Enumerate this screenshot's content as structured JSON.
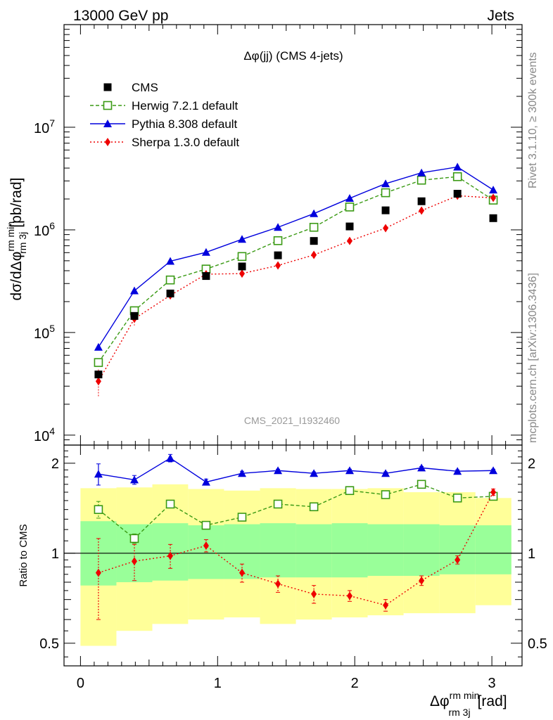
{
  "header": {
    "left": "13000 GeV pp",
    "right": "Jets"
  },
  "side_labels": {
    "rivet": "Rivet 3.1.10, ≥ 300k events",
    "mcplots": "mcplots.cern.ch [arXiv:1306.3436]"
  },
  "chart_data": {
    "type": "scatter",
    "title": "Δφ(jj) (CMS 4-jets)",
    "watermark": "CMS_2021_I1932460",
    "xlabel": {
      "main": "Δφ",
      "sup": "rm min",
      "sub": "rm 3j",
      "unit": "[rad]"
    },
    "ylabel": {
      "pre": "dσ/dΔφ",
      "sup": "rm min",
      "sub": "rm 3j",
      "unit": "[pb/rad]"
    },
    "ratio_ylabel": "Ratio to CMS",
    "xlim": [
      -0.12,
      3.22
    ],
    "ylim": [
      8000,
      100000000
    ],
    "yscale": "log",
    "ratio_ylim": [
      0.42,
      2.3
    ],
    "xticks": [
      "0",
      "1",
      "2",
      "3"
    ],
    "yticks": [
      "10^4",
      "10^5",
      "10^6",
      "10^7"
    ],
    "ratio_yticks": [
      "0.5",
      "1",
      "2"
    ],
    "x": [
      0.131,
      0.393,
      0.655,
      0.916,
      1.178,
      1.44,
      1.702,
      1.963,
      2.225,
      2.487,
      2.749,
      3.01
    ],
    "bin_edges": [
      0,
      0.262,
      0.524,
      0.785,
      1.047,
      1.309,
      1.571,
      1.833,
      2.094,
      2.356,
      2.618,
      2.88,
      3.142
    ],
    "data": {
      "name": "CMS",
      "values": [
        39000,
        145000,
        240000,
        355000,
        440000,
        565000,
        780000,
        1080000,
        1550000,
        1900000,
        2250000,
        1300000
      ],
      "stat_band": [
        0.78,
        0.8,
        0.81,
        0.82,
        0.82,
        0.83,
        0.83,
        0.83,
        0.84,
        0.84,
        0.85,
        0.85
      ],
      "stat_band_hi": [
        1.28,
        1.25,
        1.26,
        1.24,
        1.25,
        1.26,
        1.25,
        1.26,
        1.25,
        1.25,
        1.24,
        1.24
      ],
      "total_band_lo": [
        0.49,
        0.55,
        0.58,
        0.6,
        0.61,
        0.58,
        0.6,
        0.61,
        0.62,
        0.63,
        0.63,
        0.67
      ],
      "total_band_hi": [
        1.65,
        1.66,
        1.7,
        1.64,
        1.62,
        1.65,
        1.64,
        1.64,
        1.65,
        1.6,
        1.6,
        1.53
      ]
    },
    "series": [
      {
        "name": "Herwig 7.2.1 default",
        "color": "#3a9a14",
        "marker": "open-square",
        "line": "dashed",
        "values": [
          51000,
          163000,
          325000,
          415000,
          550000,
          785000,
          1060000,
          1670000,
          2300000,
          3050000,
          3300000,
          1950000
        ],
        "ratio": [
          1.4,
          1.12,
          1.46,
          1.24,
          1.32,
          1.46,
          1.43,
          1.62,
          1.57,
          1.7,
          1.53,
          1.55
        ],
        "ratio_err": [
          0.09,
          0.04,
          0.03,
          0.02,
          0.02,
          0.02,
          0.02,
          0.02,
          0.02,
          0.02,
          0.02,
          0.02
        ]
      },
      {
        "name": "Pythia 8.308 default",
        "color": "#0000dd",
        "marker": "triangle",
        "line": "solid",
        "values": [
          72000,
          255000,
          495000,
          605000,
          810000,
          1060000,
          1440000,
          2030000,
          2820000,
          3600000,
          4100000,
          2450000
        ],
        "ratio": [
          1.84,
          1.76,
          2.08,
          1.73,
          1.85,
          1.89,
          1.85,
          1.89,
          1.85,
          1.93,
          1.88,
          1.89
        ],
        "ratio_err": [
          0.15,
          0.06,
          0.06,
          0.04,
          0.03,
          0.02,
          0.02,
          0.02,
          0.02,
          0.02,
          0.02,
          0.02
        ]
      },
      {
        "name": "Sherpa 1.3.0 default",
        "color": "#ee0000",
        "marker": "diamond",
        "line": "dotted",
        "values": [
          33500,
          136000,
          230000,
          370000,
          375000,
          450000,
          570000,
          780000,
          1040000,
          1540000,
          2150000,
          2050000
        ],
        "ratio": [
          0.86,
          0.94,
          0.98,
          1.06,
          0.86,
          0.79,
          0.73,
          0.72,
          0.67,
          0.81,
          0.95,
          1.6
        ],
        "ratio_err": [
          0.26,
          0.13,
          0.09,
          0.05,
          0.06,
          0.05,
          0.05,
          0.03,
          0.03,
          0.03,
          0.03,
          0.04
        ]
      }
    ],
    "legend": "top-left"
  }
}
